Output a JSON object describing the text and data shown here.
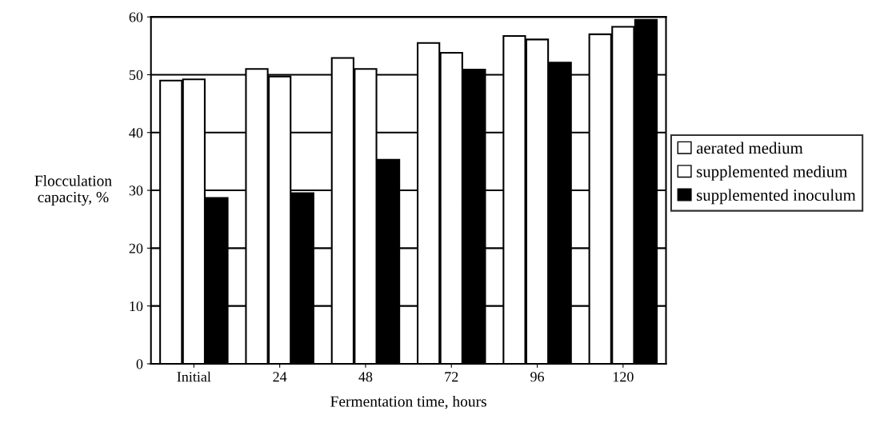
{
  "chart_data": {
    "type": "bar",
    "xlabel": "Fermentation time, hours",
    "ylabel": "Flocculation\ncapacity, %",
    "categories": [
      "Initial",
      "24",
      "48",
      "72",
      "96",
      "120"
    ],
    "series": [
      {
        "name": "aerated medium",
        "color": "#ffffff",
        "values": [
          49.0,
          51.0,
          52.9,
          55.5,
          56.7,
          57.0
        ]
      },
      {
        "name": "supplemented medium",
        "color": "#ffffff",
        "values": [
          49.2,
          49.7,
          51.0,
          53.8,
          56.1,
          58.3
        ]
      },
      {
        "name": "supplemented inoculum",
        "color": "#000000",
        "values": [
          28.7,
          29.5,
          35.3,
          50.9,
          52.1,
          59.5
        ]
      }
    ],
    "ylim": [
      0,
      60
    ],
    "yticks": [
      0,
      10,
      20,
      30,
      40,
      50,
      60
    ],
    "grid": "y",
    "legend": "right"
  }
}
